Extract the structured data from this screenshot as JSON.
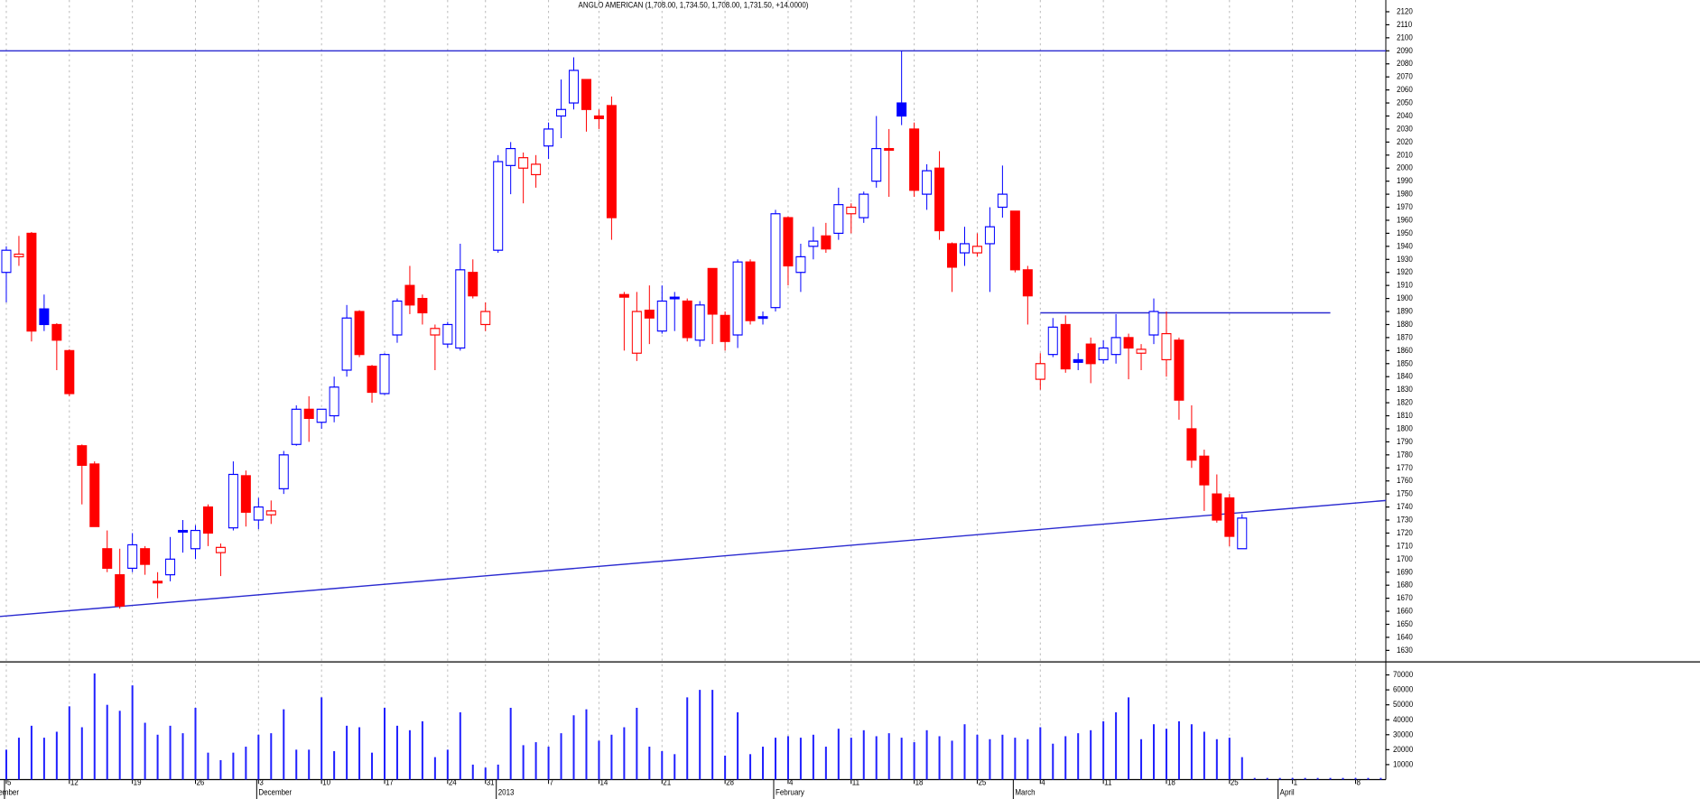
{
  "chart_data": {
    "type": "candlestick",
    "title": "ANGLO AMERICAN (1,708.00, 1,734.50, 1,708.00, 1,731.50, +14.0000)",
    "categories": [
      "5",
      null,
      null,
      null,
      null,
      "12",
      null,
      null,
      null,
      null,
      "19",
      null,
      null,
      null,
      null,
      "26",
      null,
      null,
      null,
      null,
      "3",
      null,
      null,
      null,
      null,
      "10",
      null,
      null,
      null,
      null,
      "17",
      null,
      null,
      null,
      null,
      "24",
      null,
      null,
      "31",
      null,
      null,
      null,
      null,
      "7",
      null,
      null,
      null,
      "14",
      null,
      null,
      null,
      null,
      "21",
      null,
      null,
      null,
      null,
      "28",
      null,
      null,
      null,
      null,
      "4",
      null,
      null,
      null,
      null,
      "11",
      null,
      null,
      null,
      null,
      "18",
      null,
      null,
      null,
      null,
      "25",
      null,
      null,
      null,
      null,
      "4",
      null,
      null,
      null,
      null,
      "11",
      null,
      null,
      null,
      null,
      "18",
      null,
      null,
      null,
      null,
      "25",
      null,
      null,
      null,
      null,
      "1",
      null,
      null,
      null,
      null,
      "8",
      null,
      null
    ],
    "month_categories": [
      "November",
      null,
      null,
      null,
      null,
      null,
      null,
      null,
      null,
      null,
      null,
      null,
      null,
      null,
      null,
      null,
      null,
      null,
      null,
      null,
      "December",
      null,
      null,
      null,
      null,
      null,
      null,
      null,
      null,
      null,
      null,
      null,
      null,
      null,
      null,
      null,
      null,
      null,
      null,
      "2013",
      null,
      null,
      null,
      null,
      null,
      null,
      null,
      null,
      null,
      null,
      null,
      null,
      null,
      null,
      null,
      null,
      null,
      null,
      null,
      null,
      null,
      "February",
      null,
      null,
      null,
      null,
      null,
      null,
      null,
      null,
      null,
      null,
      null,
      null,
      null,
      null,
      null,
      null,
      null,
      null,
      "March",
      null,
      null,
      null,
      null,
      null,
      null,
      null,
      null,
      null,
      null,
      null,
      null,
      null,
      null,
      null,
      null,
      null,
      null,
      null,
      null,
      "April",
      null,
      null,
      null,
      null,
      null,
      null,
      null
    ],
    "open": [
      1920,
      1932,
      1950,
      1892,
      1880,
      1860,
      1787,
      1773,
      1708,
      1688,
      1693,
      1708,
      1683,
      1688,
      1722,
      1708,
      1740,
      1705,
      1724,
      1764,
      1730,
      1734,
      1754,
      1788,
      1815,
      1805,
      1810,
      1845,
      1890,
      1848,
      1827,
      1872,
      1910,
      1900,
      1872,
      1865,
      1862,
      1920,
      1880,
      1937,
      2002,
      2000,
      1995,
      2017,
      2040,
      2050,
      2068,
      2040,
      2048,
      1903,
      1858,
      1891,
      1875,
      1901,
      1898,
      1868,
      1923,
      1887,
      1872,
      1928,
      1886,
      1893,
      1962,
      1920,
      1940,
      1948,
      1950,
      1965,
      1962,
      1990,
      2015,
      2050,
      2030,
      1980,
      2000,
      1942,
      1935,
      1935,
      1942,
      1970,
      1967,
      1922,
      1838,
      1857,
      1880,
      1853,
      1865,
      1853,
      1857,
      1870,
      1858,
      1872,
      1853,
      1868,
      1800,
      1779,
      1750,
      1747,
      1708,
      null,
      null,
      null,
      null,
      null,
      null,
      null,
      null,
      null,
      null,
      null
    ],
    "high": [
      1940,
      1948,
      1951,
      1903,
      1881,
      1861,
      1788,
      1775,
      1722,
      1708,
      1720,
      1710,
      1690,
      1717,
      1730,
      1726,
      1742,
      1712,
      1775,
      1768,
      1747,
      1745,
      1783,
      1818,
      1825,
      1815,
      1840,
      1895,
      1891,
      1849,
      1858,
      1900,
      1925,
      1903,
      1880,
      1882,
      1942,
      1930,
      1897,
      2010,
      2020,
      2012,
      2010,
      2035,
      2068,
      2085,
      2068,
      2045,
      2055,
      1905,
      1905,
      1910,
      1910,
      1905,
      1900,
      1898,
      1923,
      1890,
      1930,
      1930,
      1890,
      1968,
      1963,
      1942,
      1955,
      1958,
      1985,
      1973,
      1982,
      2040,
      2030,
      2090,
      2035,
      2003,
      2013,
      1943,
      1955,
      1950,
      1970,
      2002,
      1967,
      1925,
      1858,
      1885,
      1887,
      1858,
      1870,
      1868,
      1888,
      1873,
      1865,
      1900,
      1890,
      1870,
      1818,
      1784,
      1765,
      1750,
      1734.5,
      null,
      null,
      null,
      null,
      null,
      null,
      null,
      null,
      null,
      null,
      null
    ],
    "low": [
      1897,
      1925,
      1867,
      1875,
      1845,
      1825,
      1742,
      1725,
      1690,
      1662,
      1690,
      1688,
      1670,
      1683,
      1705,
      1700,
      1710,
      1687,
      1722,
      1725,
      1723,
      1727,
      1750,
      1787,
      1790,
      1800,
      1805,
      1840,
      1855,
      1820,
      1826,
      1866,
      1888,
      1880,
      1845,
      1862,
      1860,
      1900,
      1875,
      1935,
      1980,
      1973,
      1985,
      2007,
      2023,
      2045,
      2028,
      2030,
      1945,
      1860,
      1852,
      1865,
      1873,
      1875,
      1867,
      1863,
      1865,
      1860,
      1862,
      1880,
      1880,
      1890,
      1910,
      1905,
      1930,
      1935,
      1945,
      1950,
      1958,
      1985,
      1978,
      2033,
      1978,
      1968,
      1945,
      1905,
      1925,
      1932,
      1905,
      1962,
      1920,
      1880,
      1830,
      1855,
      1843,
      1845,
      1835,
      1850,
      1850,
      1838,
      1845,
      1865,
      1840,
      1807,
      1770,
      1737,
      1728,
      1710,
      1708,
      null,
      null,
      null,
      null,
      null,
      null,
      null,
      null,
      null,
      null,
      null
    ],
    "close": [
      1937,
      1934,
      1875,
      1880,
      1868,
      1827,
      1772,
      1725,
      1693,
      1664,
      1711,
      1696,
      1682,
      1700,
      1721,
      1722,
      1720,
      1709,
      1765,
      1736,
      1740,
      1737,
      1780,
      1815,
      1808,
      1815,
      1832,
      1885,
      1857,
      1828,
      1857,
      1898,
      1895,
      1889,
      1877,
      1880,
      1922,
      1902,
      1890,
      2005,
      2015,
      2008,
      2003,
      2030,
      2045,
      2075,
      2045,
      2038,
      1962,
      1901,
      1890,
      1885,
      1898,
      1900,
      1870,
      1895,
      1888,
      1867,
      1928,
      1883,
      1885,
      1965,
      1925,
      1932,
      1944,
      1938,
      1972,
      1970,
      1980,
      2015,
      2014,
      2040,
      1983,
      1998,
      1952,
      1924,
      1942,
      1940,
      1955,
      1980,
      1922,
      1902,
      1850,
      1878,
      1846,
      1851,
      1850,
      1862,
      1870,
      1862,
      1861,
      1890,
      1873,
      1822,
      1776,
      1757,
      1730,
      1717.5,
      1731.5,
      null,
      null,
      null,
      null,
      null,
      null,
      null,
      null,
      null,
      null,
      null
    ],
    "volume": [
      20000,
      28000,
      36000,
      28000,
      32000,
      49000,
      35000,
      71000,
      50000,
      46000,
      63000,
      38000,
      30000,
      36000,
      31000,
      48000,
      18000,
      13000,
      18000,
      22000,
      30000,
      31000,
      47000,
      20000,
      20000,
      55000,
      19000,
      36000,
      35000,
      18000,
      48000,
      36000,
      33000,
      39000,
      15000,
      20000,
      45000,
      10000,
      8000,
      10000,
      48000,
      23000,
      25000,
      22000,
      31000,
      43000,
      47000,
      26000,
      30000,
      35000,
      48000,
      22000,
      19000,
      17000,
      55000,
      60000,
      60000,
      16000,
      45000,
      17000,
      22000,
      28000,
      29000,
      28000,
      30000,
      22000,
      34000,
      28000,
      33000,
      29000,
      31000,
      28000,
      25000,
      33000,
      29000,
      26000,
      37000,
      30000,
      27000,
      30000,
      28000,
      27000,
      35000,
      24000,
      29000,
      31000,
      33000,
      39000,
      45000,
      55000,
      27000,
      37000,
      34000,
      39000,
      37000,
      32000,
      27000,
      28000,
      15000,
      0,
      0,
      0,
      0,
      0,
      0,
      0,
      0,
      0,
      0,
      0
    ],
    "up_color": "#0000ff",
    "down_color": "#ff0000",
    "volume_color": "#2020ff",
    "line_color": "#2a2ad0",
    "xlim": [
      -0.5,
      109.4
    ],
    "ylim": [
      1622,
      2129
    ],
    "yticks": [
      1630,
      1640,
      1650,
      1660,
      1670,
      1680,
      1690,
      1700,
      1710,
      1720,
      1730,
      1740,
      1750,
      1760,
      1770,
      1780,
      1790,
      1800,
      1810,
      1820,
      1830,
      1840,
      1850,
      1860,
      1870,
      1880,
      1890,
      1900,
      1910,
      1920,
      1930,
      1940,
      1950,
      1960,
      1970,
      1980,
      1990,
      2000,
      2010,
      2020,
      2030,
      2040,
      2050,
      2060,
      2070,
      2080,
      2090,
      2100,
      2110,
      2120
    ],
    "volume_ylim": [
      0,
      78000
    ],
    "volume_yticks": [
      10000,
      20000,
      30000,
      40000,
      50000,
      60000,
      70000
    ],
    "lines": [
      {
        "x": [
          -0.5,
          109.4
        ],
        "values": [
          2090,
          2090
        ]
      },
      {
        "x": [
          -0.5,
          109.4
        ],
        "values": [
          1656,
          1745
        ]
      },
      {
        "x": [
          82,
          105
        ],
        "values": [
          1889,
          1889
        ]
      }
    ],
    "grid": true
  }
}
